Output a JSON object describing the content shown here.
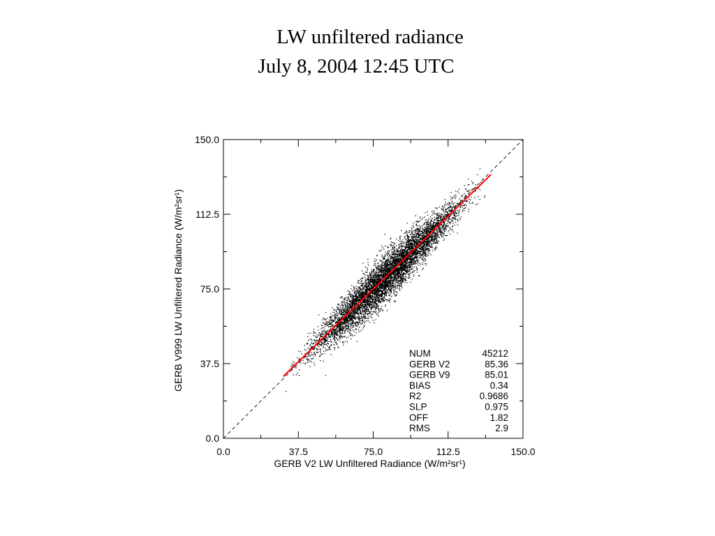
{
  "slide": {
    "title_line1": "LW unfiltered radiance",
    "title_line2": "July 8, 2004 12:45 UTC"
  },
  "chart_data": {
    "type": "scatter",
    "xlabel": "GERB V2 LW Unfiltered Radiance (W/m²sr¹)",
    "ylabel": "GERB V999 LW Unfiltered Radiance (W/m²sr¹)",
    "xlim": [
      0.0,
      150.0
    ],
    "ylim": [
      0.0,
      150.0
    ],
    "xticks": [
      "0.0",
      "37.5",
      "75.0",
      "112.5",
      "150.0"
    ],
    "yticks": [
      "0.0",
      "37.5",
      "75.0",
      "112.5",
      "150.0"
    ],
    "reference_line": {
      "style": "dashed",
      "x": [
        0,
        150
      ],
      "y": [
        0,
        150
      ]
    },
    "fit_line": {
      "color": "#ff0000",
      "x": [
        30.0,
        134.0
      ],
      "y": [
        31.07,
        132.47
      ]
    },
    "scatter": {
      "color": "#000000",
      "count": 45212,
      "x_range": [
        30,
        134
      ],
      "slope": 0.975,
      "offset": 1.82,
      "rms": 2.9
    },
    "stats": [
      {
        "label": "NUM",
        "value": "45212"
      },
      {
        "label": "GERB V2",
        "value": "85.36"
      },
      {
        "label": "GERB V9",
        "value": "85.01"
      },
      {
        "label": "BIAS",
        "value": "0.34"
      },
      {
        "label": "R2",
        "value": "0.9686"
      },
      {
        "label": "SLP",
        "value": "0.975"
      },
      {
        "label": "OFF",
        "value": "1.82"
      },
      {
        "label": "RMS",
        "value": "2.9"
      }
    ],
    "legend_placement": "bottom-right",
    "grid": false
  }
}
